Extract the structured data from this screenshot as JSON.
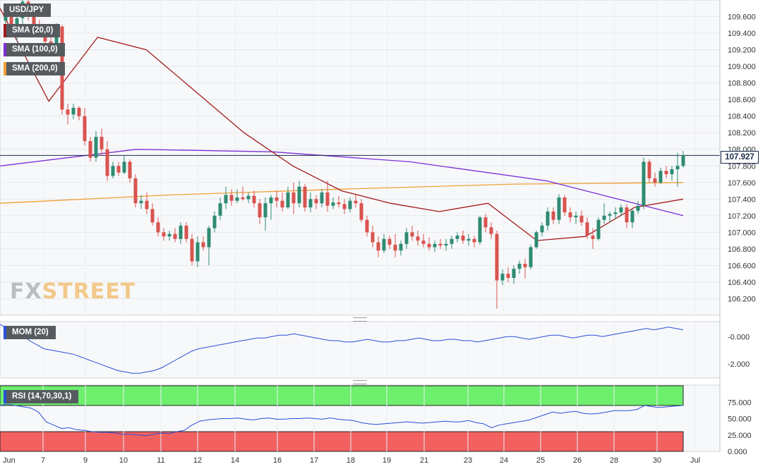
{
  "legend": {
    "symbol": "USD/JPY",
    "sma20": "SMA (20,0)",
    "sma100": "SMA (100,0)",
    "sma200": "SMA (200,0)",
    "mom": "MOM (20)",
    "rsi": "RSI (14,70,30,1)"
  },
  "last_price": "107.927",
  "logo": {
    "fx": "FX",
    "street": "STREET"
  },
  "colors": {
    "bull": "#2e8b72",
    "bear": "#d9534f",
    "sma20": "#a11c1c",
    "sma100": "#7a2fd6",
    "sma200": "#f0a035",
    "momentum": "#2a4fd8",
    "rsi_over": "#6ef06e",
    "rsi_under": "#f26060"
  },
  "chart_data": [
    {
      "type": "candlestick",
      "title": "USD/JPY",
      "timeframe": "4-hour",
      "ylim": [
        106.0,
        109.8
      ],
      "y_ticks": [
        "109.600",
        "109.400",
        "109.200",
        "109.000",
        "108.800",
        "108.600",
        "108.400",
        "108.200",
        "108.000",
        "107.800",
        "107.600",
        "107.400",
        "107.200",
        "107.000",
        "106.800",
        "106.600",
        "106.400",
        "106.200"
      ],
      "x_ticks": [
        "Jun",
        "7",
        "9",
        "10",
        "11",
        "12",
        "14",
        "16",
        "17",
        "18",
        "19",
        "21",
        "23",
        "24",
        "25",
        "26",
        "28",
        "30",
        "Jul"
      ],
      "last_price": 107.927,
      "candles": [
        [
          109.55,
          109.75,
          109.45,
          109.6
        ],
        [
          109.6,
          109.7,
          109.35,
          109.4
        ],
        [
          109.4,
          109.62,
          109.3,
          109.58
        ],
        [
          109.58,
          109.85,
          109.5,
          109.78
        ],
        [
          109.78,
          109.82,
          109.55,
          109.62
        ],
        [
          109.62,
          109.66,
          109.4,
          109.5
        ],
        [
          109.5,
          109.56,
          109.38,
          109.42
        ],
        [
          109.42,
          109.48,
          109.24,
          109.3
        ],
        [
          109.3,
          109.35,
          109.2,
          109.26
        ],
        [
          109.26,
          109.52,
          109.18,
          109.48
        ],
        [
          109.48,
          109.5,
          108.42,
          108.48
        ],
        [
          108.48,
          108.55,
          108.3,
          108.42
        ],
        [
          108.42,
          108.55,
          108.36,
          108.5
        ],
        [
          108.5,
          108.52,
          108.35,
          108.4
        ],
        [
          108.4,
          108.5,
          108.05,
          108.1
        ],
        [
          108.1,
          108.15,
          107.85,
          107.9
        ],
        [
          107.9,
          108.22,
          107.85,
          108.15
        ],
        [
          108.15,
          108.25,
          107.92,
          108.0
        ],
        [
          108.0,
          108.1,
          107.62,
          107.68
        ],
        [
          107.68,
          107.85,
          107.65,
          107.8
        ],
        [
          107.8,
          107.85,
          107.68,
          107.72
        ],
        [
          107.72,
          107.92,
          107.7,
          107.85
        ],
        [
          107.85,
          107.88,
          107.6,
          107.65
        ],
        [
          107.65,
          107.7,
          107.3,
          107.35
        ],
        [
          107.35,
          107.45,
          107.28,
          107.38
        ],
        [
          107.38,
          107.48,
          107.22,
          107.28
        ],
        [
          107.28,
          107.35,
          107.08,
          107.12
        ],
        [
          107.12,
          107.18,
          106.95,
          107.0
        ],
        [
          107.0,
          107.05,
          106.9,
          106.95
        ],
        [
          106.95,
          107.02,
          106.9,
          106.98
        ],
        [
          106.98,
          107.05,
          106.88,
          106.92
        ],
        [
          106.92,
          107.12,
          106.86,
          107.08
        ],
        [
          107.08,
          107.12,
          106.88,
          106.92
        ],
        [
          106.92,
          106.98,
          106.6,
          106.65
        ],
        [
          106.65,
          106.95,
          106.58,
          106.88
        ],
        [
          106.88,
          106.95,
          106.78,
          106.82
        ],
        [
          106.82,
          107.08,
          106.6,
          107.05
        ],
        [
          107.05,
          107.25,
          107.0,
          107.2
        ],
        [
          107.2,
          107.42,
          107.15,
          107.35
        ],
        [
          107.35,
          107.55,
          107.28,
          107.45
        ],
        [
          107.45,
          107.52,
          107.32,
          107.38
        ],
        [
          107.38,
          107.52,
          107.35,
          107.42
        ],
        [
          107.42,
          107.55,
          107.38,
          107.4
        ],
        [
          107.4,
          107.48,
          107.35,
          107.44
        ],
        [
          107.44,
          107.5,
          107.3,
          107.35
        ],
        [
          107.35,
          107.4,
          107.1,
          107.18
        ],
        [
          107.18,
          107.42,
          107.02,
          107.35
        ],
        [
          107.35,
          107.45,
          107.15,
          107.42
        ],
        [
          107.42,
          107.5,
          107.3,
          107.38
        ],
        [
          107.38,
          107.48,
          107.25,
          107.3
        ],
        [
          107.3,
          107.55,
          107.28,
          107.48
        ],
        [
          107.48,
          107.6,
          107.22,
          107.35
        ],
        [
          107.35,
          107.62,
          107.3,
          107.55
        ],
        [
          107.55,
          107.58,
          107.25,
          107.3
        ],
        [
          107.3,
          107.48,
          107.24,
          107.4
        ],
        [
          107.4,
          107.45,
          107.28,
          107.35
        ],
        [
          107.35,
          107.52,
          107.3,
          107.48
        ],
        [
          107.48,
          107.62,
          107.25,
          107.32
        ],
        [
          107.32,
          107.42,
          107.28,
          107.36
        ],
        [
          107.36,
          107.44,
          107.3,
          107.34
        ],
        [
          107.34,
          107.4,
          107.22,
          107.28
        ],
        [
          107.28,
          107.42,
          107.24,
          107.38
        ],
        [
          107.38,
          107.45,
          107.3,
          107.35
        ],
        [
          107.35,
          107.4,
          107.12,
          107.15
        ],
        [
          107.15,
          107.2,
          106.95,
          107.0
        ],
        [
          107.0,
          107.08,
          106.82,
          106.88
        ],
        [
          106.88,
          106.95,
          106.7,
          106.78
        ],
        [
          106.78,
          106.98,
          106.75,
          106.92
        ],
        [
          106.92,
          106.96,
          106.8,
          106.85
        ],
        [
          106.85,
          106.98,
          106.7,
          106.78
        ],
        [
          106.78,
          106.9,
          106.72,
          106.86
        ],
        [
          106.86,
          107.05,
          106.8,
          107.0
        ],
        [
          107.0,
          107.08,
          106.9,
          106.95
        ],
        [
          106.95,
          107.02,
          106.84,
          106.9
        ],
        [
          106.9,
          106.98,
          106.82,
          106.86
        ],
        [
          106.86,
          106.94,
          106.78,
          106.82
        ],
        [
          106.82,
          106.9,
          106.76,
          106.86
        ],
        [
          106.86,
          106.92,
          106.8,
          106.84
        ],
        [
          106.84,
          106.92,
          106.78,
          106.86
        ],
        [
          106.86,
          106.96,
          106.8,
          106.92
        ],
        [
          106.92,
          107.0,
          106.88,
          106.96
        ],
        [
          106.96,
          107.02,
          106.86,
          106.9
        ],
        [
          106.9,
          106.98,
          106.84,
          106.92
        ],
        [
          106.92,
          106.96,
          106.82,
          106.88
        ],
        [
          106.88,
          107.2,
          106.85,
          107.18
        ],
        [
          107.18,
          107.22,
          107.0,
          107.06
        ],
        [
          107.06,
          107.12,
          106.92,
          106.98
        ],
        [
          106.98,
          107.02,
          106.08,
          106.42
        ],
        [
          106.42,
          106.55,
          106.36,
          106.5
        ],
        [
          106.5,
          106.58,
          106.4,
          106.45
        ],
        [
          106.45,
          106.6,
          106.38,
          106.56
        ],
        [
          106.56,
          106.66,
          106.5,
          106.62
        ],
        [
          106.62,
          106.68,
          106.44,
          106.58
        ],
        [
          106.58,
          106.85,
          106.55,
          106.82
        ],
        [
          106.82,
          107.02,
          106.8,
          107.0
        ],
        [
          107.0,
          107.12,
          106.95,
          107.08
        ],
        [
          107.08,
          107.3,
          107.02,
          107.25
        ],
        [
          107.25,
          107.3,
          107.1,
          107.15
        ],
        [
          107.15,
          107.46,
          107.1,
          107.42
        ],
        [
          107.42,
          107.45,
          107.2,
          107.24
        ],
        [
          107.24,
          107.3,
          107.12,
          107.18
        ],
        [
          107.18,
          107.25,
          107.1,
          107.2
        ],
        [
          107.2,
          107.26,
          107.08,
          107.12
        ],
        [
          107.12,
          107.18,
          106.92,
          106.96
        ],
        [
          106.96,
          107.05,
          106.8,
          106.92
        ],
        [
          106.92,
          107.18,
          106.9,
          107.15
        ],
        [
          107.15,
          107.35,
          107.1,
          107.2
        ],
        [
          107.2,
          107.25,
          107.12,
          107.22
        ],
        [
          107.22,
          107.3,
          107.16,
          107.24
        ],
        [
          107.24,
          107.34,
          107.2,
          107.3
        ],
        [
          107.3,
          107.34,
          107.05,
          107.12
        ],
        [
          107.12,
          107.28,
          107.05,
          107.26
        ],
        [
          107.26,
          107.38,
          107.22,
          107.32
        ],
        [
          107.32,
          107.9,
          107.28,
          107.85
        ],
        [
          107.85,
          107.88,
          107.6,
          107.65
        ],
        [
          107.65,
          107.72,
          107.55,
          107.6
        ],
        [
          107.6,
          107.78,
          107.58,
          107.74
        ],
        [
          107.74,
          107.8,
          107.65,
          107.7
        ],
        [
          107.7,
          107.8,
          107.62,
          107.76
        ],
        [
          107.76,
          107.96,
          107.55,
          107.8
        ],
        [
          107.8,
          107.98,
          107.78,
          107.93
        ]
      ],
      "sma20": [
        [
          109.7,
          108.58
        ],
        [
          109.4,
          109.35
        ],
        [
          108.8,
          109.2
        ],
        [
          108.5,
          108.7
        ],
        [
          108.0,
          108.2
        ],
        [
          107.6,
          107.8
        ],
        [
          107.3,
          107.5
        ],
        [
          107.15,
          107.35
        ],
        [
          107.45,
          107.25
        ],
        [
          107.4,
          107.35
        ],
        [
          106.95,
          106.9
        ],
        [
          106.82,
          106.95
        ],
        [
          107.0,
          107.3
        ],
        [
          107.0,
          107.4
        ]
      ],
      "sma100": [
        [
          107.8,
          108.0
        ],
        [
          108.05,
          107.97
        ],
        [
          107.92,
          107.85
        ],
        [
          107.75,
          107.62
        ],
        [
          107.5,
          107.2
        ]
      ],
      "sma200": [
        [
          107.35,
          107.45
        ],
        [
          107.48,
          107.52
        ],
        [
          107.56,
          107.58
        ],
        [
          107.6,
          107.6
        ]
      ]
    },
    {
      "type": "line",
      "title": "MOM (20)",
      "ylim": [
        -3.0,
        1.0
      ],
      "y_ticks": [
        "-0.000",
        "-2.000"
      ],
      "values": [
        0.9,
        0.6,
        0.4,
        0.1,
        -0.3,
        -0.6,
        -0.9,
        -1.0,
        -1.1,
        -1.2,
        -1.3,
        -1.5,
        -1.7,
        -1.9,
        -2.1,
        -2.3,
        -2.5,
        -2.6,
        -2.7,
        -2.7,
        -2.6,
        -2.5,
        -2.3,
        -2.0,
        -1.7,
        -1.4,
        -1.1,
        -0.9,
        -0.8,
        -0.7,
        -0.6,
        -0.5,
        -0.4,
        -0.3,
        -0.2,
        -0.1,
        -0.1,
        0.0,
        0.1,
        0.1,
        0.2,
        0.1,
        0.0,
        -0.1,
        -0.2,
        -0.3,
        -0.3,
        -0.4,
        -0.4,
        -0.3,
        -0.2,
        -0.3,
        -0.4,
        -0.4,
        -0.3,
        -0.3,
        -0.2,
        -0.1,
        -0.2,
        -0.3,
        -0.3,
        -0.2,
        -0.2,
        -0.3,
        -0.3,
        -0.4,
        -0.3,
        -0.2,
        -0.1,
        0.0,
        0.0,
        -0.1,
        -0.2,
        -0.1,
        0.0,
        0.1,
        0.1,
        0.0,
        -0.1,
        0.0,
        0.1,
        0.1,
        0.0,
        0.1,
        0.2,
        0.3,
        0.4,
        0.5,
        0.6,
        0.5,
        0.6,
        0.7,
        0.6,
        0.5
      ]
    },
    {
      "type": "line",
      "title": "RSI (14,70,30,1)",
      "ylim": [
        0,
        100
      ],
      "y_ticks": [
        "75.000",
        "50.000",
        "25.000",
        "0.000"
      ],
      "bands": {
        "overbought": 70,
        "oversold": 30
      },
      "values": [
        70,
        72,
        70,
        68,
        66,
        60,
        45,
        40,
        35,
        36,
        33,
        32,
        30,
        29,
        29,
        28,
        26,
        26,
        25,
        24,
        26,
        28,
        27,
        30,
        32,
        40,
        46,
        48,
        49,
        50,
        50,
        51,
        49,
        48,
        50,
        51,
        49,
        49,
        50,
        50,
        51,
        50,
        49,
        51,
        49,
        48,
        47,
        44,
        42,
        41,
        42,
        43,
        44,
        45,
        44,
        43,
        44,
        45,
        46,
        45,
        45,
        47,
        44,
        42,
        36,
        40,
        42,
        44,
        46,
        48,
        52,
        56,
        60,
        58,
        60,
        61,
        58,
        57,
        58,
        60,
        62,
        62,
        62,
        64,
        70,
        68,
        67,
        68,
        69,
        70
      ]
    }
  ]
}
